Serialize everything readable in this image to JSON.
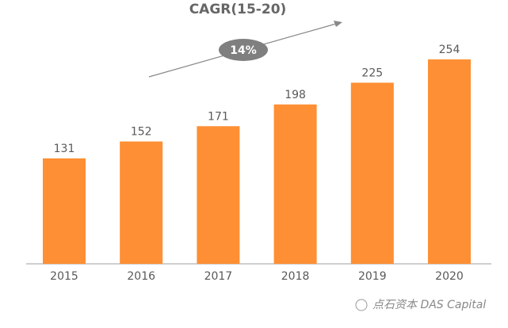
{
  "chart_data": {
    "type": "bar",
    "title": "CAGR(15-20)",
    "annotation": "14%",
    "categories": [
      "2015",
      "2016",
      "2017",
      "2018",
      "2019",
      "2020"
    ],
    "values": [
      131,
      152,
      171,
      198,
      225,
      254
    ],
    "color": "#fe8f34",
    "watermark": "点石资本 DAS Capital"
  }
}
